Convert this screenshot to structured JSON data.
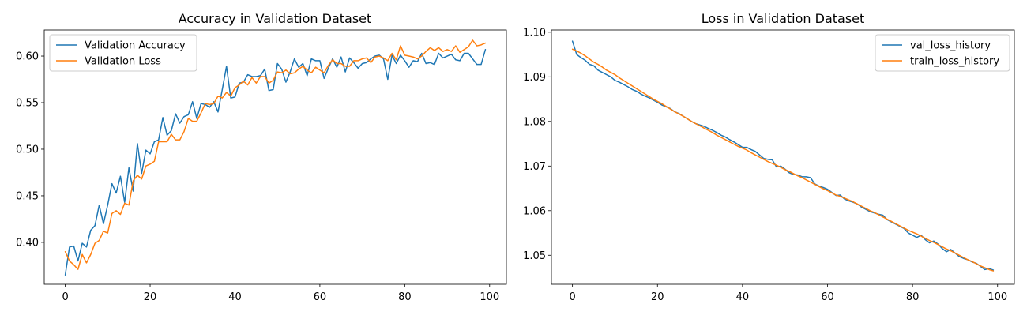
{
  "chart_data": [
    {
      "type": "line",
      "title": "Accuracy in Validation Dataset",
      "xlabel": "",
      "ylabel": "",
      "xlim": [
        -4.95,
        103.95
      ],
      "ylim": [
        0.355,
        0.628
      ],
      "xticks": [
        0,
        20,
        40,
        60,
        80,
        100
      ],
      "yticks": [
        0.4,
        0.45,
        0.5,
        0.55,
        0.6
      ],
      "ytick_labels": [
        "0.40",
        "0.45",
        "0.50",
        "0.55",
        "0.60"
      ],
      "grid": false,
      "legend_position": "top-left",
      "series": [
        {
          "name": "Validation Accuracy",
          "color": "#1f77b4",
          "x": [
            0,
            1,
            2,
            3,
            4,
            5,
            6,
            7,
            8,
            9,
            10,
            11,
            12,
            13,
            14,
            15,
            16,
            17,
            18,
            19,
            20,
            21,
            22,
            23,
            24,
            25,
            26,
            27,
            28,
            29,
            30,
            31,
            32,
            33,
            34,
            35,
            36,
            37,
            38,
            39,
            40,
            41,
            42,
            43,
            44,
            45,
            46,
            47,
            48,
            49,
            50,
            51,
            52,
            53,
            54,
            55,
            56,
            57,
            58,
            59,
            60,
            61,
            62,
            63,
            64,
            65,
            66,
            67,
            68,
            69,
            70,
            71,
            72,
            73,
            74,
            75,
            76,
            77,
            78,
            79,
            80,
            81,
            82,
            83,
            84,
            85,
            86,
            87,
            88,
            89,
            90,
            91,
            92,
            93,
            94,
            95,
            96,
            97,
            98,
            99
          ],
          "values": [
            0.365,
            0.395,
            0.396,
            0.38,
            0.399,
            0.395,
            0.413,
            0.418,
            0.44,
            0.42,
            0.44,
            0.463,
            0.453,
            0.471,
            0.443,
            0.48,
            0.455,
            0.506,
            0.474,
            0.499,
            0.495,
            0.508,
            0.51,
            0.534,
            0.515,
            0.52,
            0.538,
            0.528,
            0.535,
            0.537,
            0.551,
            0.533,
            0.549,
            0.548,
            0.545,
            0.551,
            0.54,
            0.564,
            0.589,
            0.555,
            0.556,
            0.571,
            0.572,
            0.58,
            0.578,
            0.578,
            0.579,
            0.586,
            0.563,
            0.564,
            0.592,
            0.586,
            0.572,
            0.583,
            0.597,
            0.588,
            0.592,
            0.579,
            0.597,
            0.595,
            0.595,
            0.576,
            0.587,
            0.597,
            0.588,
            0.599,
            0.583,
            0.598,
            0.593,
            0.587,
            0.592,
            0.593,
            0.597,
            0.6,
            0.601,
            0.597,
            0.575,
            0.601,
            0.592,
            0.601,
            0.595,
            0.588,
            0.595,
            0.594,
            0.603,
            0.592,
            0.593,
            0.591,
            0.603,
            0.598,
            0.6,
            0.602,
            0.596,
            0.595,
            0.603,
            0.603,
            0.597,
            0.591,
            0.591,
            0.607
          ]
        },
        {
          "name": "Validation Loss",
          "color": "#ff7f0e",
          "x": [
            0,
            1,
            2,
            3,
            4,
            5,
            6,
            7,
            8,
            9,
            10,
            11,
            12,
            13,
            14,
            15,
            16,
            17,
            18,
            19,
            20,
            21,
            22,
            23,
            24,
            25,
            26,
            27,
            28,
            29,
            30,
            31,
            32,
            33,
            34,
            35,
            36,
            37,
            38,
            39,
            40,
            41,
            42,
            43,
            44,
            45,
            46,
            47,
            48,
            49,
            50,
            51,
            52,
            53,
            54,
            55,
            56,
            57,
            58,
            59,
            60,
            61,
            62,
            63,
            64,
            65,
            66,
            67,
            68,
            69,
            70,
            71,
            72,
            73,
            74,
            75,
            76,
            77,
            78,
            79,
            80,
            81,
            82,
            83,
            84,
            85,
            86,
            87,
            88,
            89,
            90,
            91,
            92,
            93,
            94,
            95,
            96,
            97,
            98,
            99
          ],
          "values": [
            0.39,
            0.38,
            0.376,
            0.371,
            0.387,
            0.378,
            0.387,
            0.399,
            0.402,
            0.412,
            0.41,
            0.431,
            0.434,
            0.43,
            0.442,
            0.44,
            0.466,
            0.472,
            0.468,
            0.482,
            0.484,
            0.487,
            0.508,
            0.508,
            0.508,
            0.516,
            0.51,
            0.51,
            0.519,
            0.533,
            0.53,
            0.53,
            0.539,
            0.549,
            0.548,
            0.549,
            0.557,
            0.555,
            0.561,
            0.557,
            0.566,
            0.569,
            0.573,
            0.569,
            0.577,
            0.571,
            0.578,
            0.578,
            0.571,
            0.574,
            0.583,
            0.582,
            0.585,
            0.581,
            0.582,
            0.586,
            0.589,
            0.585,
            0.582,
            0.588,
            0.585,
            0.582,
            0.59,
            0.596,
            0.592,
            0.592,
            0.589,
            0.589,
            0.595,
            0.595,
            0.597,
            0.598,
            0.593,
            0.599,
            0.6,
            0.598,
            0.595,
            0.603,
            0.596,
            0.611,
            0.601,
            0.6,
            0.599,
            0.597,
            0.6,
            0.605,
            0.609,
            0.606,
            0.609,
            0.605,
            0.607,
            0.605,
            0.611,
            0.604,
            0.607,
            0.61,
            0.617,
            0.611,
            0.612,
            0.614
          ]
        }
      ]
    },
    {
      "type": "line",
      "title": "Loss in Validation Dataset",
      "xlabel": "",
      "ylabel": "",
      "xlim": [
        -4.95,
        103.95
      ],
      "ylim": [
        1.0435,
        1.1005
      ],
      "xticks": [
        0,
        20,
        40,
        60,
        80,
        100
      ],
      "yticks": [
        1.05,
        1.06,
        1.07,
        1.08,
        1.09,
        1.1
      ],
      "ytick_labels": [
        "1.05",
        "1.06",
        "1.07",
        "1.08",
        "1.09",
        "1.10"
      ],
      "grid": false,
      "legend_position": "top-right",
      "series": [
        {
          "name": "val_loss_history",
          "color": "#1f77b4",
          "x": [
            0,
            1,
            2,
            3,
            4,
            5,
            6,
            7,
            8,
            9,
            10,
            11,
            12,
            13,
            14,
            15,
            16,
            17,
            18,
            19,
            20,
            21,
            22,
            23,
            24,
            25,
            26,
            27,
            28,
            29,
            30,
            31,
            32,
            33,
            34,
            35,
            36,
            37,
            38,
            39,
            40,
            41,
            42,
            43,
            44,
            45,
            46,
            47,
            48,
            49,
            50,
            51,
            52,
            53,
            54,
            55,
            56,
            57,
            58,
            59,
            60,
            61,
            62,
            63,
            64,
            65,
            66,
            67,
            68,
            69,
            70,
            71,
            72,
            73,
            74,
            75,
            76,
            77,
            78,
            79,
            80,
            81,
            82,
            83,
            84,
            85,
            86,
            87,
            88,
            89,
            90,
            91,
            92,
            93,
            94,
            95,
            96,
            97,
            98,
            99
          ],
          "values": [
            1.098,
            1.095,
            1.0943,
            1.0937,
            1.0928,
            1.0925,
            1.0915,
            1.091,
            1.0905,
            1.09,
            1.0892,
            1.0888,
            1.0883,
            1.0878,
            1.0872,
            1.0868,
            1.0862,
            1.0857,
            1.0853,
            1.0848,
            1.0843,
            1.0837,
            1.0833,
            1.0829,
            1.0822,
            1.0818,
            1.0812,
            1.0806,
            1.08,
            1.0795,
            1.0792,
            1.0789,
            1.0784,
            1.078,
            1.0775,
            1.0769,
            1.0765,
            1.0759,
            1.0754,
            1.0748,
            1.0742,
            1.0742,
            1.0737,
            1.0733,
            1.0725,
            1.0717,
            1.0715,
            1.0714,
            1.0698,
            1.07,
            1.0693,
            1.0685,
            1.0681,
            1.068,
            1.0676,
            1.0676,
            1.0674,
            1.066,
            1.0655,
            1.0652,
            1.0648,
            1.0641,
            1.0634,
            1.0635,
            1.0626,
            1.0622,
            1.0619,
            1.0615,
            1.0608,
            1.0603,
            1.0598,
            1.0595,
            1.0592,
            1.059,
            1.058,
            1.0575,
            1.057,
            1.0565,
            1.056,
            1.055,
            1.0545,
            1.054,
            1.0545,
            1.0535,
            1.0528,
            1.0532,
            1.0525,
            1.0515,
            1.0508,
            1.0513,
            1.0505,
            1.0497,
            1.0493,
            1.049,
            1.0485,
            1.0482,
            1.0475,
            1.0468,
            1.047,
            1.0467
          ]
        },
        {
          "name": "train_loss_history",
          "color": "#ff7f0e",
          "x": [
            0,
            1,
            2,
            3,
            4,
            5,
            6,
            7,
            8,
            9,
            10,
            11,
            12,
            13,
            14,
            15,
            16,
            17,
            18,
            19,
            20,
            21,
            22,
            23,
            24,
            25,
            26,
            27,
            28,
            29,
            30,
            31,
            32,
            33,
            34,
            35,
            36,
            37,
            38,
            39,
            40,
            41,
            42,
            43,
            44,
            45,
            46,
            47,
            48,
            49,
            50,
            51,
            52,
            53,
            54,
            55,
            56,
            57,
            58,
            59,
            60,
            61,
            62,
            63,
            64,
            65,
            66,
            67,
            68,
            69,
            70,
            71,
            72,
            73,
            74,
            75,
            76,
            77,
            78,
            79,
            80,
            81,
            82,
            83,
            84,
            85,
            86,
            87,
            88,
            89,
            90,
            91,
            92,
            93,
            94,
            95,
            96,
            97,
            98,
            99
          ],
          "values": [
            1.0962,
            1.0958,
            1.0953,
            1.0947,
            1.094,
            1.0933,
            1.0928,
            1.0922,
            1.0915,
            1.091,
            1.0905,
            1.0898,
            1.0892,
            1.0886,
            1.088,
            1.0874,
            1.0868,
            1.0862,
            1.0856,
            1.085,
            1.0845,
            1.084,
            1.0834,
            1.0828,
            1.0822,
            1.0817,
            1.0812,
            1.0806,
            1.08,
            1.0795,
            1.079,
            1.0785,
            1.078,
            1.0775,
            1.0769,
            1.0764,
            1.0759,
            1.0754,
            1.0749,
            1.0744,
            1.074,
            1.0736,
            1.073,
            1.0725,
            1.072,
            1.0715,
            1.071,
            1.0706,
            1.0702,
            1.0697,
            1.0692,
            1.0688,
            1.0683,
            1.0678,
            1.0674,
            1.0669,
            1.0664,
            1.0659,
            1.0654,
            1.0649,
            1.0645,
            1.064,
            1.0635,
            1.0632,
            1.0628,
            1.0624,
            1.062,
            1.0615,
            1.061,
            1.0605,
            1.06,
            1.0596,
            1.0591,
            1.0586,
            1.0581,
            1.0576,
            1.0571,
            1.0566,
            1.0561,
            1.0556,
            1.0552,
            1.0548,
            1.0543,
            1.0538,
            1.0533,
            1.0529,
            1.0524,
            1.0519,
            1.0514,
            1.051,
            1.0505,
            1.05,
            1.0495,
            1.049,
            1.0486,
            1.0481,
            1.0476,
            1.0472,
            1.0468,
            1.0465
          ]
        }
      ]
    }
  ]
}
